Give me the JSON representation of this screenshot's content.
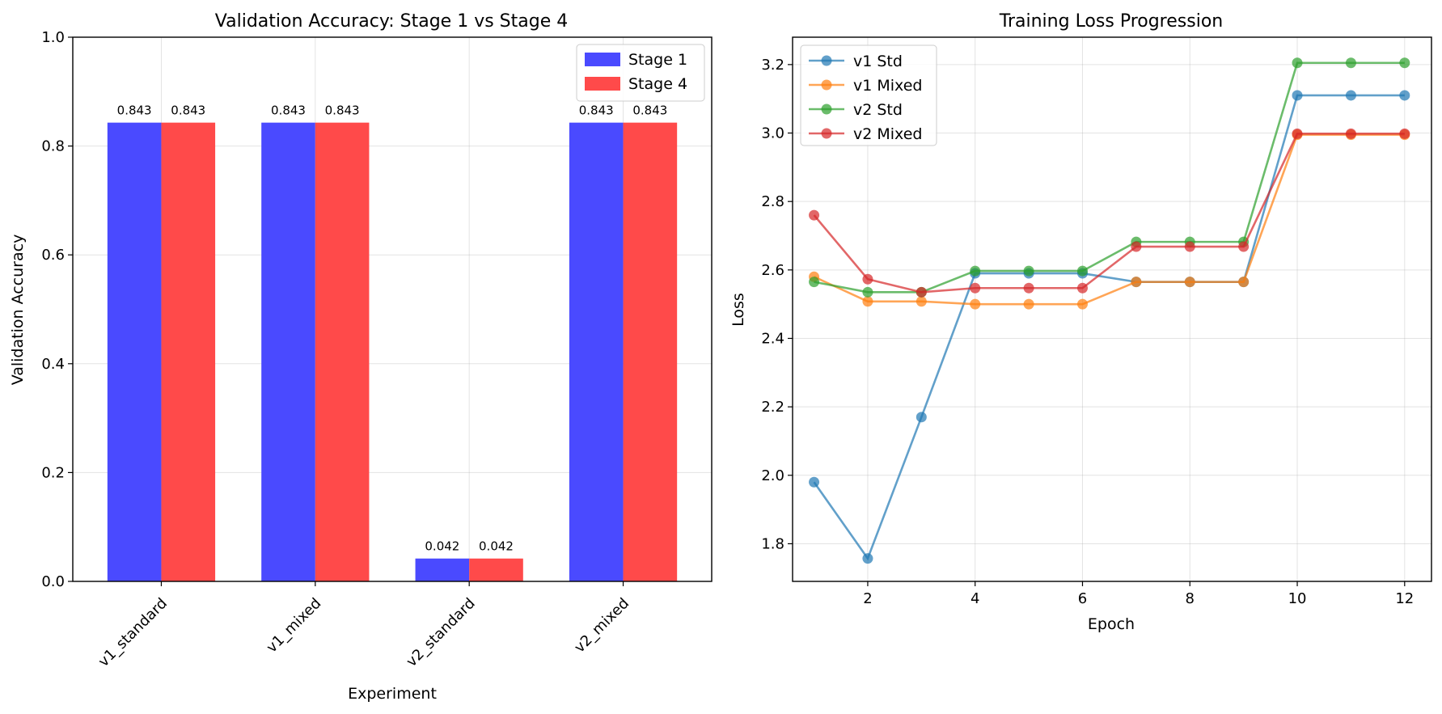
{
  "chart_data": [
    {
      "type": "bar",
      "title": "Validation Accuracy: Stage 1 vs Stage 4",
      "xlabel": "Experiment",
      "ylabel": "Validation Accuracy",
      "ylim": [
        0,
        1.0
      ],
      "yticks": [
        "0.0",
        "0.2",
        "0.4",
        "0.6",
        "0.8",
        "1.0"
      ],
      "categories": [
        "v1_standard",
        "v1_mixed",
        "v2_standard",
        "v2_mixed"
      ],
      "series": [
        {
          "name": "Stage 1",
          "color": "#4a4aff",
          "values": [
            0.843,
            0.843,
            0.042,
            0.843
          ],
          "labels": [
            "0.843",
            "0.843",
            "0.042",
            "0.843"
          ]
        },
        {
          "name": "Stage 4",
          "color": "#ff4a4a",
          "values": [
            0.843,
            0.843,
            0.042,
            0.843
          ],
          "labels": [
            "0.843",
            "0.843",
            "0.042",
            "0.843"
          ]
        }
      ],
      "grid": true,
      "legend": "top-right"
    },
    {
      "type": "line",
      "title": "Training Loss Progression",
      "xlabel": "Epoch",
      "ylabel": "Loss",
      "xlim": [
        0.6,
        12.5
      ],
      "ylim": [
        1.69,
        3.28
      ],
      "xticks": [
        "2",
        "4",
        "6",
        "8",
        "10",
        "12"
      ],
      "yticks": [
        "1.8",
        "2.0",
        "2.2",
        "2.4",
        "2.6",
        "2.8",
        "3.0",
        "3.2"
      ],
      "x": [
        1,
        2,
        3,
        4,
        5,
        6,
        7,
        8,
        9,
        10,
        11,
        12
      ],
      "series": [
        {
          "name": "v1 Std",
          "color": "#1f77b4",
          "values": [
            1.98,
            1.757,
            2.17,
            2.59,
            2.59,
            2.59,
            2.565,
            2.565,
            2.565,
            3.11,
            3.11,
            3.11
          ]
        },
        {
          "name": "v1 Mixed",
          "color": "#ff7f0e",
          "values": [
            2.58,
            2.508,
            2.508,
            2.5,
            2.5,
            2.5,
            2.565,
            2.565,
            2.565,
            2.995,
            2.995,
            2.995
          ]
        },
        {
          "name": "v2 Std",
          "color": "#2ca02c",
          "values": [
            2.565,
            2.535,
            2.535,
            2.597,
            2.597,
            2.597,
            2.682,
            2.682,
            2.682,
            3.205,
            3.205,
            3.205
          ]
        },
        {
          "name": "v2 Mixed",
          "color": "#d62728",
          "values": [
            2.76,
            2.573,
            2.535,
            2.547,
            2.547,
            2.547,
            2.668,
            2.668,
            2.668,
            2.998,
            2.998,
            2.998
          ]
        }
      ],
      "grid": true,
      "legend": "top-left"
    }
  ]
}
